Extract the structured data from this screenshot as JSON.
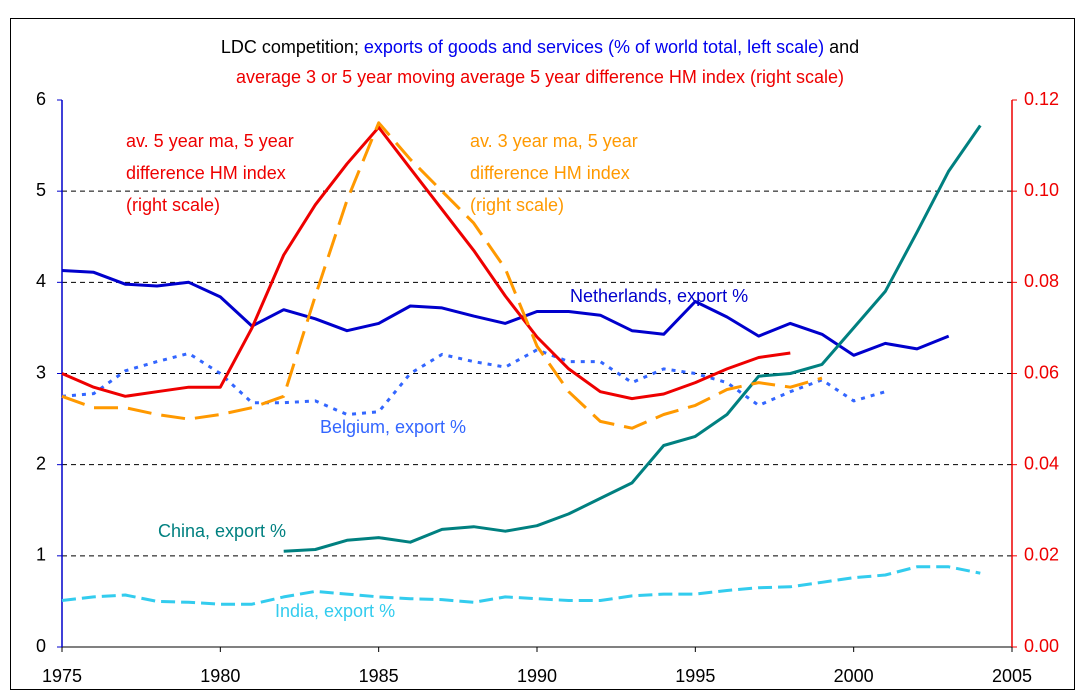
{
  "chart_data": {
    "type": "line",
    "title_lines": [
      [
        {
          "text": "LDC competition;",
          "color": "#000000"
        },
        {
          "text": "exports of goods and services (% of world total, left scale)",
          "color": "#0000ee"
        },
        {
          "text": "and",
          "color": "#000000"
        }
      ],
      [
        {
          "text": "average 3 or 5 year moving average 5 year difference HM index (right scale)",
          "color": "#ee0000"
        }
      ]
    ],
    "x": [
      1975,
      1976,
      1977,
      1978,
      1979,
      1980,
      1981,
      1982,
      1983,
      1984,
      1985,
      1986,
      1987,
      1988,
      1989,
      1990,
      1991,
      1992,
      1993,
      1994,
      1995,
      1996,
      1997,
      1998,
      1999,
      2000,
      2001,
      2002,
      2003,
      2004
    ],
    "xlim": [
      1975,
      2005
    ],
    "xticks": [
      1975,
      1980,
      1985,
      1990,
      1995,
      2000,
      2005
    ],
    "ylim": [
      0,
      6
    ],
    "yticks": [
      0,
      1,
      2,
      3,
      4,
      5,
      6
    ],
    "y2lim": [
      0,
      0.12
    ],
    "y2ticks": [
      {
        "value": 0,
        "label": "0.00"
      },
      0.02,
      0.04,
      0.06,
      0.08,
      {
        "value": 0.1,
        "label": "0.10"
      },
      0.12
    ],
    "grid": true,
    "series": [
      {
        "label_lines": [
          "Netherlands, export %"
        ],
        "color": "#0000cc",
        "style": "solid",
        "values": [
          4.13,
          4.11,
          3.98,
          3.96,
          4.0,
          3.84,
          3.52,
          3.7,
          3.6,
          3.47,
          3.55,
          3.74,
          3.72,
          3.63,
          3.55,
          3.68,
          3.68,
          3.64,
          3.47,
          3.43,
          3.79,
          3.62,
          3.41,
          3.55,
          3.43,
          3.2,
          3.33,
          3.27,
          3.41,
          null
        ]
      },
      {
        "label_lines": [
          "Belgium, export %"
        ],
        "color": "#3366ff",
        "style": "dotted",
        "values": [
          2.75,
          2.78,
          3.03,
          3.13,
          3.22,
          3.0,
          2.68,
          2.68,
          2.7,
          2.55,
          2.58,
          3.0,
          3.21,
          3.13,
          3.07,
          3.26,
          3.13,
          3.13,
          2.9,
          3.05,
          3.0,
          2.9,
          2.65,
          2.8,
          2.93,
          2.7,
          2.8,
          null,
          null,
          null
        ]
      },
      {
        "label_lines": [
          "China, export %"
        ],
        "color": "#008080",
        "style": "solid",
        "values": [
          null,
          null,
          null,
          null,
          null,
          null,
          null,
          1.05,
          1.07,
          1.17,
          1.2,
          1.15,
          1.29,
          1.32,
          1.27,
          1.33,
          1.46,
          1.63,
          1.8,
          2.21,
          2.31,
          2.55,
          2.97,
          3.0,
          3.1,
          3.5,
          3.9,
          4.55,
          5.22,
          5.72
        ]
      },
      {
        "label_lines": [
          "India, export %"
        ],
        "color": "#33ccee",
        "style": "dashed",
        "values": [
          0.51,
          0.55,
          0.57,
          0.5,
          0.49,
          0.47,
          0.47,
          0.55,
          0.61,
          0.58,
          0.55,
          0.53,
          0.52,
          0.49,
          0.55,
          0.53,
          0.51,
          0.51,
          0.56,
          0.58,
          0.58,
          0.62,
          0.65,
          0.66,
          0.71,
          0.76,
          0.79,
          0.88,
          0.88,
          0.81
        ]
      },
      {
        "label_lines": [
          "av. 5 year ma, 5 year",
          "difference HM index",
          "(right scale)"
        ],
        "color": "#ee0000",
        "style": "solid",
        "axis": "y2",
        "values": [
          0.06,
          0.057,
          0.055,
          0.056,
          0.057,
          0.057,
          0.07,
          0.086,
          0.097,
          0.106,
          0.114,
          0.105,
          0.096,
          0.087,
          0.077,
          0.068,
          0.061,
          0.056,
          0.0545,
          0.0555,
          0.058,
          0.061,
          0.0635,
          0.0645,
          null,
          null,
          null,
          null,
          null,
          null
        ]
      },
      {
        "label_lines": [
          "av. 3 year ma, 5 year",
          "difference HM index",
          "(right scale)"
        ],
        "color": "#ff9900",
        "style": "longdash",
        "axis": "y2",
        "values": [
          0.055,
          0.0525,
          0.0525,
          0.051,
          0.05,
          0.051,
          0.0525,
          0.055,
          0.077,
          0.098,
          0.115,
          0.107,
          0.1,
          0.093,
          0.083,
          0.066,
          0.056,
          0.0495,
          0.048,
          0.051,
          0.053,
          0.0565,
          0.058,
          0.057,
          0.059,
          null,
          null,
          null,
          null,
          null
        ]
      }
    ]
  }
}
